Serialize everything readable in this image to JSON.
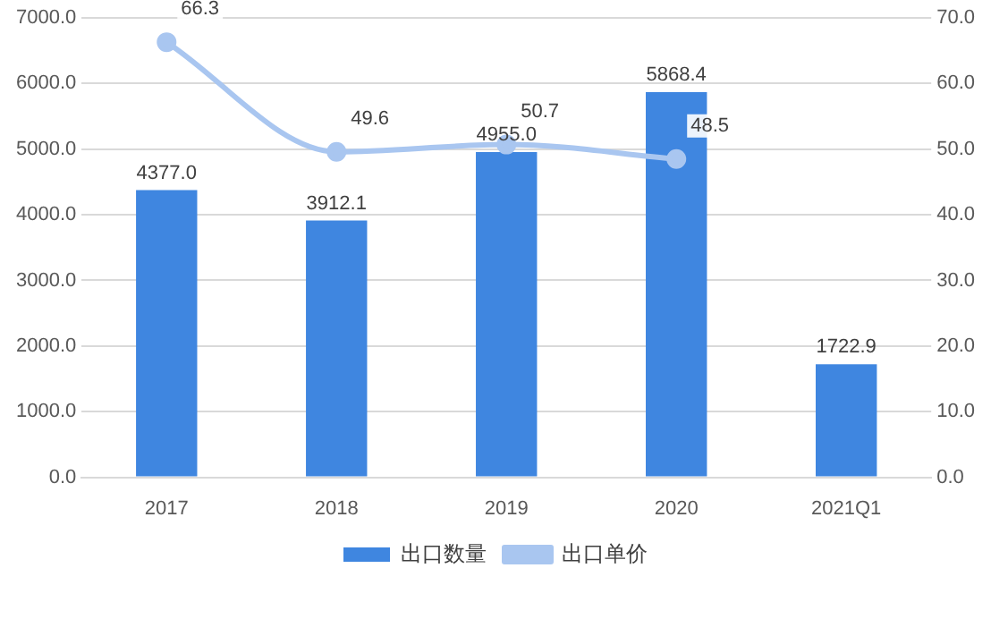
{
  "chart_data": {
    "type": "bar",
    "categories": [
      "2017",
      "2018",
      "2019",
      "2020",
      "2021Q1"
    ],
    "series": [
      {
        "name": "出口数量",
        "type": "bar",
        "color": "#3f86e0",
        "values": [
          4377.0,
          3912.1,
          4955.0,
          5868.4,
          1722.9
        ],
        "value_labels": [
          "4377.0",
          "3912.1",
          "4955.0",
          "5868.4",
          "1722.9"
        ]
      },
      {
        "name": "出口单价",
        "type": "line",
        "axis": "y2",
        "color": "#a9c6f0",
        "values": [
          66.3,
          49.6,
          50.7,
          48.5,
          null
        ],
        "value_labels": [
          "66.3",
          "49.6",
          "50.7",
          "48.5",
          null
        ]
      }
    ],
    "ylim": [
      0,
      7000
    ],
    "yticks": [
      {
        "value": 0,
        "label": "0.0"
      },
      {
        "value": 1000,
        "label": "1000.0"
      },
      {
        "value": 2000,
        "label": "2000.0"
      },
      {
        "value": 3000,
        "label": "3000.0"
      },
      {
        "value": 4000,
        "label": "4000.0"
      },
      {
        "value": 5000,
        "label": "5000.0"
      },
      {
        "value": 6000,
        "label": "6000.0"
      },
      {
        "value": 7000,
        "label": "7000.0"
      }
    ],
    "y2lim": [
      0,
      70
    ],
    "y2ticks": [
      {
        "value": 0,
        "label": "0.0"
      },
      {
        "value": 10,
        "label": "10.0"
      },
      {
        "value": 20,
        "label": "20.0"
      },
      {
        "value": 30,
        "label": "30.0"
      },
      {
        "value": 40,
        "label": "40.0"
      },
      {
        "value": 50,
        "label": "50.0"
      },
      {
        "value": 60,
        "label": "60.0"
      },
      {
        "value": 70,
        "label": "70.0"
      }
    ],
    "grid": "y",
    "legend": "bottom",
    "marker": "circle"
  }
}
